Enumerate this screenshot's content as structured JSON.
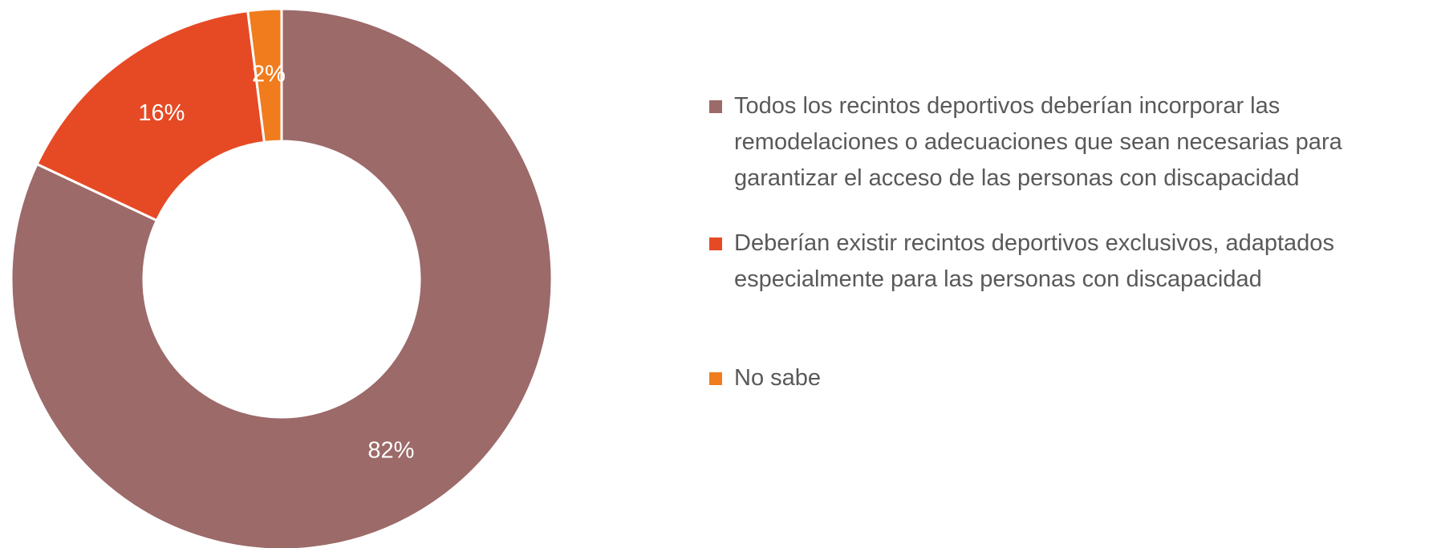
{
  "chart_data": {
    "type": "donut",
    "categories": [
      "Todos los recintos deportivos deberían incorporar las remodelaciones o adecuaciones que sean necesarias para garantizar el acceso de las personas con discapacidad",
      "Deberían existir recintos deportivos exclusivos, adaptados especialmente para las personas con discapacidad",
      "No sabe"
    ],
    "values": [
      82,
      16,
      2
    ],
    "value_labels": [
      "82%",
      "16%",
      "2%"
    ],
    "colors": [
      "#9c6a69",
      "#e64a25",
      "#f07c1e"
    ],
    "legend": "right"
  }
}
